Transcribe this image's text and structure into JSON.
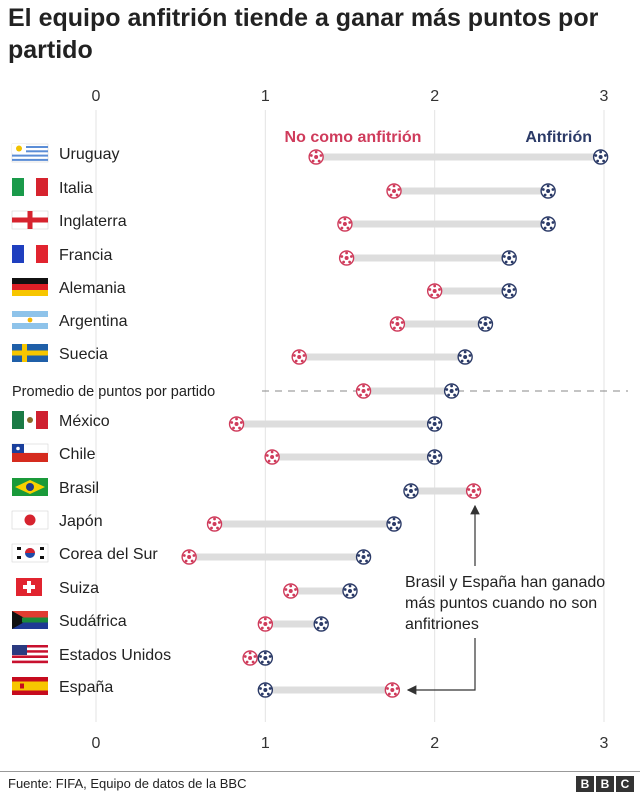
{
  "title": "El equipo anfitrión tiende a ganar más puntos por partido",
  "chart_data": {
    "type": "dumbbell",
    "title": "El equipo anfitrión tiende a ganar más puntos por partido",
    "xlim": [
      0,
      3
    ],
    "xticks": [
      "0",
      "1",
      "2",
      "3"
    ],
    "series": [
      {
        "name": "No como anfitrión",
        "color": "#cf3b5b"
      },
      {
        "name": "Anfitrión",
        "color": "#2b3a67"
      }
    ],
    "rows": [
      {
        "country": "Uruguay",
        "flag": "uruguay-flag",
        "away": 1.3,
        "home": 2.98
      },
      {
        "country": "Italia",
        "flag": "italy-flag",
        "away": 1.76,
        "home": 2.67
      },
      {
        "country": "Inglaterra",
        "flag": "england-flag",
        "away": 1.47,
        "home": 2.67
      },
      {
        "country": "Francia",
        "flag": "france-flag",
        "away": 1.48,
        "home": 2.44
      },
      {
        "country": "Alemania",
        "flag": "germany-flag",
        "away": 2.0,
        "home": 2.44
      },
      {
        "country": "Argentina",
        "flag": "argentina-flag",
        "away": 1.78,
        "home": 2.3
      },
      {
        "country": "Suecia",
        "flag": "sweden-flag",
        "away": 1.2,
        "home": 2.18
      },
      {
        "country": "Promedio de puntos por partido",
        "avg": true,
        "away": 1.58,
        "home": 2.1
      },
      {
        "country": "México",
        "flag": "mexico-flag",
        "away": 0.83,
        "home": 2.0
      },
      {
        "country": "Chile",
        "flag": "chile-flag",
        "away": 1.04,
        "home": 2.0
      },
      {
        "country": "Brasil",
        "flag": "brazil-flag",
        "away": 2.23,
        "home": 1.86
      },
      {
        "country": "Japón",
        "flag": "japan-flag",
        "away": 0.7,
        "home": 1.76
      },
      {
        "country": "Corea del Sur",
        "flag": "south-korea-flag",
        "away": 0.55,
        "home": 1.58
      },
      {
        "country": "Suiza",
        "flag": "switzerland-flag",
        "away": 1.15,
        "home": 1.5
      },
      {
        "country": "Sudáfrica",
        "flag": "south-africa-flag",
        "away": 1.0,
        "home": 1.33
      },
      {
        "country": "Estados Unidos",
        "flag": "usa-flag",
        "away": 0.91,
        "home": 1.0
      },
      {
        "country": "España",
        "flag": "spain-flag",
        "away": 1.75,
        "home": 1.0
      }
    ],
    "annotation": "Brasil y España han ganado más puntos cuando no son anfitriones"
  },
  "source": "Fuente: FIFA, Equipo de datos de la BBC",
  "logo": [
    "B",
    "B",
    "C"
  ]
}
